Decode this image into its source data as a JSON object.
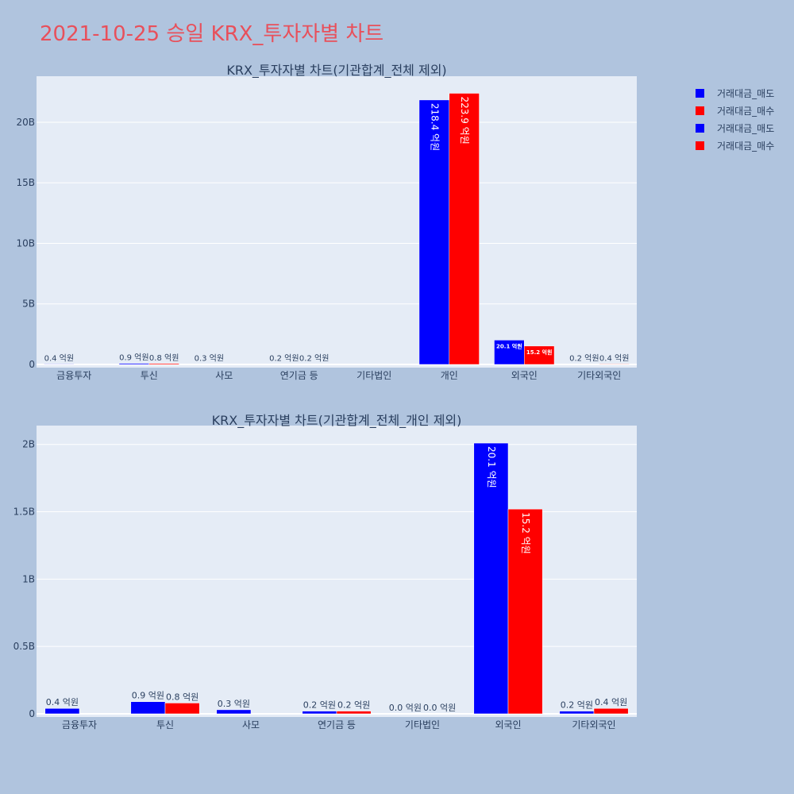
{
  "page": {
    "title": "2021-10-25 승일 KRX_투자자별 차트"
  },
  "colors": {
    "sell": "#0000ff",
    "buy": "#ff0000",
    "plot_bg": "#e5ecf6",
    "page_bg": "#b0c4de",
    "text": "#2a3f5f"
  },
  "legend": {
    "items": [
      {
        "label": "거래대금_매도",
        "color": "#0000ff"
      },
      {
        "label": "거래대금_매수",
        "color": "#ff0000"
      },
      {
        "label": "거래대금_매도",
        "color": "#0000ff"
      },
      {
        "label": "거래대금_매수",
        "color": "#ff0000"
      }
    ]
  },
  "chart_data": [
    {
      "type": "bar",
      "title": "KRX_투자자별 차트(기관합계_전체 제외)",
      "categories": [
        "금융투자",
        "투신",
        "사모",
        "연기금 등",
        "기타법인",
        "개인",
        "외국인",
        "기타외국인"
      ],
      "series": [
        {
          "name": "거래대금_매도",
          "values": [
            40000000,
            90000000,
            30000000,
            20000000,
            null,
            21840000000,
            2010000000,
            20000000
          ],
          "labels": [
            "0.4 억원",
            "0.9 억원",
            "0.3 억원",
            "0.2 억원",
            null,
            "218.4 억원",
            "20.1 억원",
            "0.2 억원"
          ]
        },
        {
          "name": "거래대금_매수",
          "values": [
            null,
            80000000,
            null,
            20000000,
            null,
            22390000000,
            1520000000,
            40000000
          ],
          "labels": [
            null,
            "0.8 억원",
            null,
            "0.2 억원",
            null,
            "223.9 억원",
            "15.2 억원",
            "0.4 억원"
          ]
        }
      ],
      "ylim": [
        0,
        23800000000
      ],
      "yticks": [
        0,
        5000000000,
        10000000000,
        15000000000,
        20000000000
      ],
      "yticklabels": [
        "0",
        "5B",
        "10B",
        "15B",
        "20B"
      ],
      "grid": true
    },
    {
      "type": "bar",
      "title": "KRX_투자자별 차트(기관합계_전체_개인 제외)",
      "categories": [
        "금융투자",
        "투신",
        "사모",
        "연기금 등",
        "기타법인",
        "외국인",
        "기타외국인"
      ],
      "series": [
        {
          "name": "거래대금_매도",
          "values": [
            40000000,
            90000000,
            30000000,
            20000000,
            0,
            2010000000,
            20000000
          ],
          "labels": [
            "0.4 억원",
            "0.9 억원",
            "0.3 억원",
            "0.2 억원",
            "0.0 억원",
            "20.1 억원",
            "0.2 억원"
          ]
        },
        {
          "name": "거래대금_매수",
          "values": [
            null,
            80000000,
            null,
            20000000,
            0,
            1520000000,
            40000000
          ],
          "labels": [
            null,
            "0.8 억원",
            null,
            "0.2 억원",
            "0.0 억원",
            "15.2 억원",
            "0.4 억원"
          ]
        }
      ],
      "ylim": [
        0,
        2140000000
      ],
      "yticks": [
        0,
        500000000,
        1000000000,
        1500000000,
        2000000000
      ],
      "yticklabels": [
        "0",
        "0.5B",
        "1B",
        "1.5B",
        "2B"
      ],
      "grid": true
    }
  ]
}
